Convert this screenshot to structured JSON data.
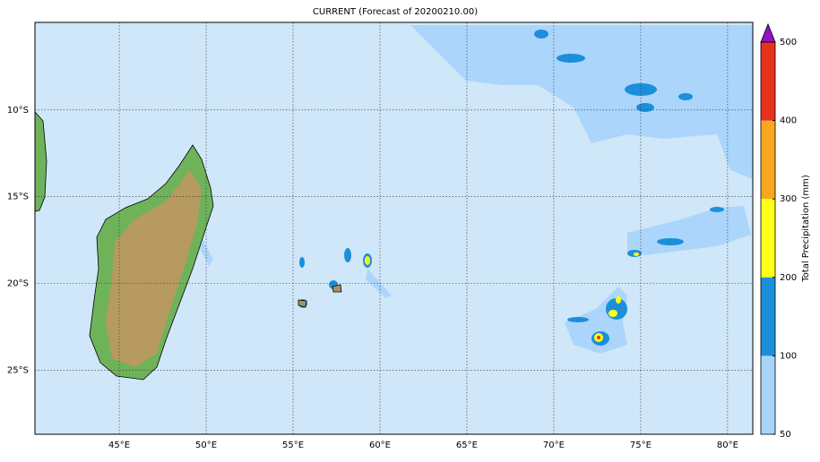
{
  "title": "CURRENT (Forecast of 20200210.00)",
  "map": {
    "xlim": [
      40.15,
      81.45
    ],
    "ylim": [
      -28.7,
      -4.95
    ],
    "xticks": [
      {
        "value": 45,
        "label": "45°E"
      },
      {
        "value": 50,
        "label": "50°E"
      },
      {
        "value": 55,
        "label": "55°E"
      },
      {
        "value": 60,
        "label": "60°E"
      },
      {
        "value": 65,
        "label": "65°E"
      },
      {
        "value": 70,
        "label": "70°E"
      },
      {
        "value": 75,
        "label": "75°E"
      },
      {
        "value": 80,
        "label": "80°E"
      }
    ],
    "yticks": [
      {
        "value": -10,
        "label": "10°S"
      },
      {
        "value": -15,
        "label": "15°S"
      },
      {
        "value": -20,
        "label": "20°S"
      },
      {
        "value": -25,
        "label": "25°S"
      }
    ],
    "grid": true
  },
  "colorbar": {
    "label": "Total Precipitation (mm)",
    "ticks": [
      50,
      100,
      200,
      300,
      400,
      500
    ],
    "colors": [
      "#a9d4fa",
      "#1c8fdb",
      "#ffff1a",
      "#f7a81e",
      "#e8321e"
    ],
    "extend_color": "#9410c6"
  }
}
